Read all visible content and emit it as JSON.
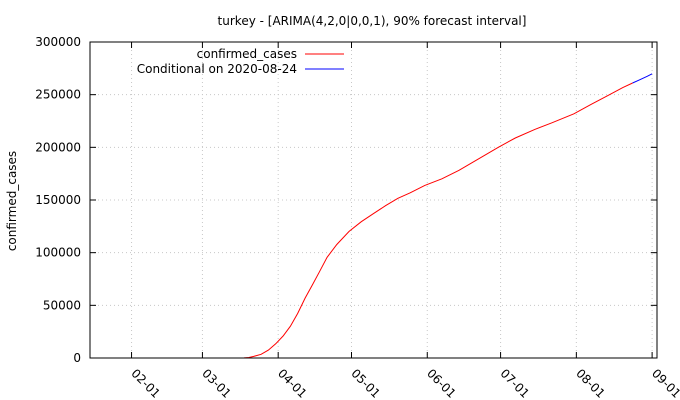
{
  "chart_data": {
    "type": "line",
    "title": "turkey -  [ARIMA(4,2,0|0,0,1), 90% forecast interval]",
    "xlabel": "",
    "ylabel": "confirmed_cases",
    "ylim": [
      0,
      300000
    ],
    "xlim": [
      "2020-01-15",
      "2020-09-03"
    ],
    "y_ticks": [
      0,
      50000,
      100000,
      150000,
      200000,
      250000,
      300000
    ],
    "y_tick_labels": [
      "0",
      "50000",
      "100000",
      "150000",
      "200000",
      "250000",
      "300000"
    ],
    "x_ticks": [
      "2020-02-01",
      "2020-03-01",
      "2020-04-01",
      "2020-05-01",
      "2020-06-01",
      "2020-07-01",
      "2020-08-01",
      "2020-09-01"
    ],
    "x_tick_labels": [
      "02-01",
      "03-01",
      "04-01",
      "05-01",
      "06-01",
      "07-01",
      "08-01",
      "09-01"
    ],
    "grid": true,
    "legend_position": "top-left",
    "series": [
      {
        "name": "confirmed_cases",
        "color": "#ff0000",
        "x": [
          "2020-03-10",
          "2020-03-15",
          "2020-03-18",
          "2020-03-20",
          "2020-03-22",
          "2020-03-25",
          "2020-03-28",
          "2020-03-31",
          "2020-04-03",
          "2020-04-06",
          "2020-04-09",
          "2020-04-12",
          "2020-04-15",
          "2020-04-18",
          "2020-04-21",
          "2020-04-25",
          "2020-04-30",
          "2020-05-05",
          "2020-05-10",
          "2020-05-15",
          "2020-05-20",
          "2020-05-25",
          "2020-05-31",
          "2020-06-07",
          "2020-06-14",
          "2020-06-21",
          "2020-06-30",
          "2020-07-07",
          "2020-07-15",
          "2020-07-22",
          "2020-07-31",
          "2020-08-07",
          "2020-08-14",
          "2020-08-20",
          "2020-08-24"
        ],
        "y": [
          0,
          0,
          100,
          500,
          1500,
          3500,
          7500,
          13500,
          20900,
          30200,
          42300,
          56900,
          69400,
          82300,
          95600,
          107800,
          120200,
          129400,
          137100,
          144700,
          151600,
          156800,
          163900,
          170100,
          178200,
          187700,
          199900,
          208900,
          217000,
          223300,
          231800,
          240800,
          249300,
          256700,
          261100
        ]
      },
      {
        "name": "Conditional on 2020-08-24",
        "color": "#0000ff",
        "x": [
          "2020-08-24",
          "2020-08-27",
          "2020-08-30",
          "2020-09-01"
        ],
        "y": [
          261100,
          264200,
          267400,
          269800
        ]
      }
    ]
  }
}
